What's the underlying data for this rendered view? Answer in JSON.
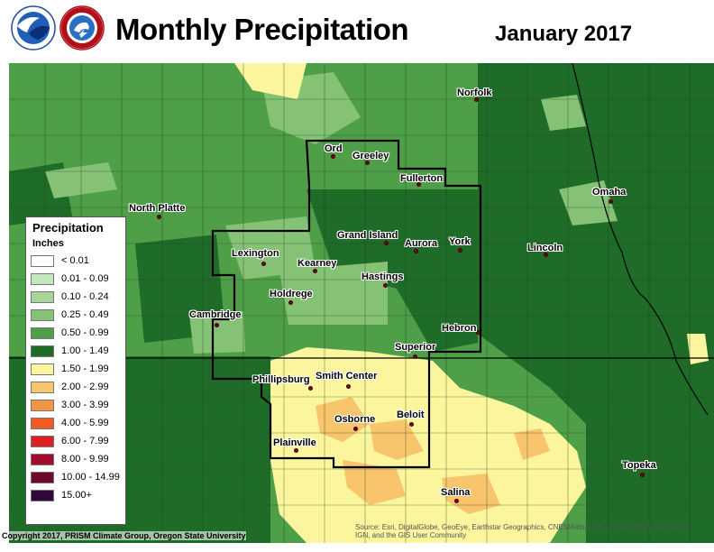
{
  "header": {
    "title": "Monthly Precipitation",
    "date": "January 2017"
  },
  "legend": {
    "title": "Precipitation",
    "units": "Inches",
    "items": [
      {
        "label": "< 0.01",
        "color": "#ffffff"
      },
      {
        "label": "0.01 - 0.09",
        "color": "#c5e7c0"
      },
      {
        "label": "0.10 - 0.24",
        "color": "#a6d49b"
      },
      {
        "label": "0.25 - 0.49",
        "color": "#86c276"
      },
      {
        "label": "0.50 - 0.99",
        "color": "#4f9f48"
      },
      {
        "label": "1.00 - 1.49",
        "color": "#1f6b28"
      },
      {
        "label": "1.50 - 1.99",
        "color": "#fbf69e"
      },
      {
        "label": "2.00 - 2.99",
        "color": "#f8c56c"
      },
      {
        "label": "3.00 - 3.99",
        "color": "#f39444"
      },
      {
        "label": "4.00 - 5.99",
        "color": "#ef5a25"
      },
      {
        "label": "6.00 - 7.99",
        "color": "#dd1f21"
      },
      {
        "label": "8.00 - 9.99",
        "color": "#a40a2c"
      },
      {
        "label": "10.00 - 14.99",
        "color": "#6e0a28"
      },
      {
        "label": "15.00+",
        "color": "#2d0a3a"
      }
    ]
  },
  "cities": [
    {
      "name": "Norfolk"
    },
    {
      "name": "Ord"
    },
    {
      "name": "Greeley"
    },
    {
      "name": "Fullerton"
    },
    {
      "name": "North Platte"
    },
    {
      "name": "Omaha"
    },
    {
      "name": "Grand Island"
    },
    {
      "name": "Aurora"
    },
    {
      "name": "York"
    },
    {
      "name": "Lexington"
    },
    {
      "name": "Lincoln"
    },
    {
      "name": "Kearney"
    },
    {
      "name": "Hastings"
    },
    {
      "name": "Holdrege"
    },
    {
      "name": "Cambridge"
    },
    {
      "name": "Hebron"
    },
    {
      "name": "Superior"
    },
    {
      "name": "Phillipsburg"
    },
    {
      "name": "Smith Center"
    },
    {
      "name": "Osborne"
    },
    {
      "name": "Beloit"
    },
    {
      "name": "Plainville"
    },
    {
      "name": "Topeka"
    },
    {
      "name": "Salina"
    }
  ],
  "footer": {
    "copyright": "Copyright 2017, PRISM Climate Group, Oregon State University",
    "source_line1": "Source: Esri, DigitalGlobe, GeoEye, Earthstar Geographics, CNES/Airbus DS, USDA, USGS, AeroGRID,",
    "source_line2": "IGN, and the GIS User Community"
  },
  "logos": {
    "left": "noaa-logo",
    "right": "national-weather-service-logo"
  }
}
